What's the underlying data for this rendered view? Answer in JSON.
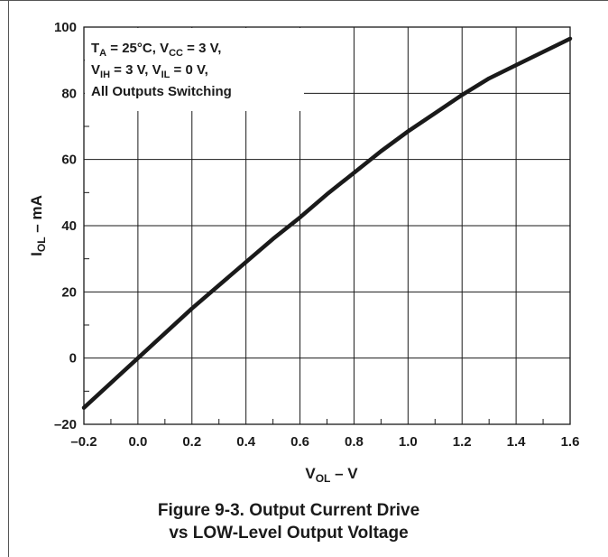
{
  "chart_data": {
    "type": "line",
    "title": "",
    "caption": [
      "Figure 9-3. Output Current Drive",
      "vs LOW-Level Output Voltage"
    ],
    "xlabel": {
      "main": "V",
      "sub": "OL",
      "suffix": " – V"
    },
    "ylabel": {
      "main": "I",
      "sub": "OL",
      "suffix": " – mA"
    },
    "xlim": [
      -0.2,
      1.6
    ],
    "ylim": [
      -20,
      100
    ],
    "xticks": [
      -0.2,
      0.0,
      0.2,
      0.4,
      0.6,
      0.8,
      1.0,
      1.2,
      1.4,
      1.6
    ],
    "xtick_labels": [
      "–0.2",
      "0.0",
      "0.2",
      "0.4",
      "0.6",
      "0.8",
      "1.0",
      "1.2",
      "1.4",
      "1.6"
    ],
    "yticks": [
      -20,
      0,
      20,
      40,
      60,
      80,
      100
    ],
    "ytick_labels": [
      "–20",
      "0",
      "20",
      "40",
      "60",
      "80",
      "100"
    ],
    "grid": true,
    "conditions": {
      "line1": [
        {
          "text": "T",
          "sub": false
        },
        {
          "text": "A",
          "sub": true
        },
        {
          "text": " = 25°C, V",
          "sub": false
        },
        {
          "text": "CC",
          "sub": true
        },
        {
          "text": " = 3 V,",
          "sub": false
        }
      ],
      "line2": [
        {
          "text": "V",
          "sub": false
        },
        {
          "text": "IH",
          "sub": true
        },
        {
          "text": " = 3 V, V",
          "sub": false
        },
        {
          "text": "IL",
          "sub": true
        },
        {
          "text": " = 0 V,",
          "sub": false
        }
      ],
      "line3": [
        {
          "text": "All Outputs Switching",
          "sub": false
        }
      ]
    },
    "series": [
      {
        "x": [
          -0.2,
          -0.1,
          0.0,
          0.1,
          0.2,
          0.3,
          0.4,
          0.5,
          0.6,
          0.7,
          0.8,
          0.9,
          1.0,
          1.1,
          1.2,
          1.3,
          1.4,
          1.5,
          1.6
        ],
        "y": [
          -15,
          -7.5,
          0,
          7.5,
          15,
          22,
          29,
          36,
          42.5,
          49.5,
          56,
          62.5,
          68.5,
          74,
          79.5,
          84.5,
          88.5,
          92.5,
          96.5
        ]
      }
    ]
  }
}
